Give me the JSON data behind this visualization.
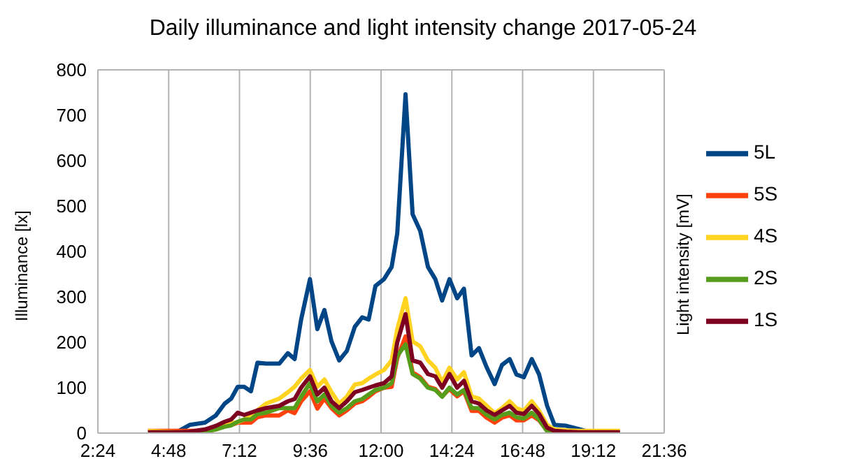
{
  "chart_data": {
    "type": "line",
    "title": "Daily illuminance and light intensity change 2017-05-24",
    "ylabel": "Illuminance [lx]",
    "y2label": "Light intensity [mV]",
    "x": [
      4.1,
      5.07,
      5.51,
      6.03,
      6.4,
      6.7,
      6.92,
      7.14,
      7.36,
      7.59,
      7.81,
      8.1,
      8.55,
      8.84,
      9.07,
      9.29,
      9.59,
      9.84,
      10.08,
      10.32,
      10.58,
      10.84,
      11.11,
      11.36,
      11.58,
      11.81,
      12.1,
      12.36,
      12.55,
      12.83,
      13.07,
      13.33,
      13.59,
      13.84,
      14.07,
      14.32,
      14.58,
      14.81,
      15.07,
      15.32,
      15.58,
      15.85,
      16.1,
      16.36,
      16.59,
      16.84,
      17.11,
      17.36,
      17.63,
      17.88,
      18.28,
      18.7,
      19.07,
      20.1
    ],
    "series": [
      {
        "name": "5L",
        "color": "#004586",
        "values": [
          2,
          2,
          18,
          23,
          39,
          65,
          76,
          102,
          102,
          92,
          155,
          153,
          153,
          176,
          163,
          250,
          339,
          229,
          271,
          202,
          160,
          181,
          234,
          255,
          250,
          324,
          339,
          366,
          440,
          746,
          482,
          445,
          366,
          339,
          292,
          339,
          297,
          318,
          171,
          187,
          145,
          108,
          150,
          163,
          129,
          123,
          163,
          129,
          60,
          18,
          16,
          9,
          2,
          2
        ]
      },
      {
        "name": "5S",
        "color": "#ff420e",
        "values": [
          5,
          5,
          5,
          5,
          8,
          16,
          18,
          23,
          23,
          23,
          35,
          39,
          39,
          50,
          44,
          70,
          92,
          54,
          76,
          55,
          39,
          50,
          65,
          70,
          80,
          92,
          100,
          102,
          165,
          213,
          134,
          123,
          102,
          97,
          81,
          97,
          81,
          92,
          49,
          49,
          34,
          23,
          34,
          39,
          28,
          28,
          39,
          28,
          5,
          4,
          null,
          null,
          null,
          null
        ]
      },
      {
        "name": "4S",
        "color": "#ffd320",
        "values": [
          5,
          2,
          3,
          5,
          8,
          19,
          22,
          24,
          30,
          39,
          50,
          65,
          76,
          90,
          102,
          120,
          139,
          102,
          118,
          90,
          65,
          80,
          107,
          110,
          120,
          129,
          139,
          160,
          229,
          297,
          202,
          191,
          160,
          144,
          112,
          144,
          118,
          134,
          81,
          76,
          60,
          44,
          55,
          70,
          55,
          49,
          70,
          49,
          18,
          8,
          6,
          5,
          5,
          5
        ]
      },
      {
        "name": "2S",
        "color": "#579d1c",
        "values": [
          null,
          null,
          0,
          3,
          8,
          14,
          17,
          25,
          30,
          30,
          42,
          45,
          55,
          55,
          55,
          80,
          110,
          70,
          85,
          60,
          45,
          55,
          70,
          75,
          85,
          95,
          100,
          110,
          170,
          195,
          130,
          120,
          100,
          95,
          80,
          100,
          85,
          95,
          55,
          55,
          40,
          30,
          40,
          45,
          35,
          32,
          45,
          30,
          4,
          2,
          0,
          0,
          0,
          0
        ]
      },
      {
        "name": "1S",
        "color": "#7e0021",
        "values": [
          2,
          2,
          3,
          8,
          16,
          25,
          30,
          45,
          40,
          45,
          50,
          55,
          60,
          70,
          75,
          100,
          125,
          85,
          100,
          70,
          55,
          70,
          90,
          95,
          100,
          105,
          110,
          125,
          200,
          262,
          160,
          155,
          130,
          125,
          100,
          130,
          100,
          115,
          70,
          65,
          50,
          40,
          50,
          60,
          45,
          42,
          60,
          42,
          12,
          5,
          3,
          2,
          2,
          2
        ]
      }
    ],
    "xlim": [
      2.4,
      21.6
    ],
    "xticks": [
      {
        "value": 2.4,
        "label": "2:24"
      },
      {
        "value": 4.8,
        "label": "4:48"
      },
      {
        "value": 7.2,
        "label": "7:12"
      },
      {
        "value": 9.6,
        "label": "9:36"
      },
      {
        "value": 12,
        "label": "12:00"
      },
      {
        "value": 14.4,
        "label": "14:24"
      },
      {
        "value": 16.8,
        "label": "16:48"
      },
      {
        "value": 19.2,
        "label": "19:12"
      },
      {
        "value": 21.6,
        "label": "21:36"
      }
    ],
    "ylim": [
      0,
      800
    ],
    "yticks": [
      0,
      100,
      200,
      300,
      400,
      500,
      600,
      700,
      800
    ],
    "grid": true,
    "legend": "right",
    "marker": "none",
    "line_style": "solid"
  }
}
